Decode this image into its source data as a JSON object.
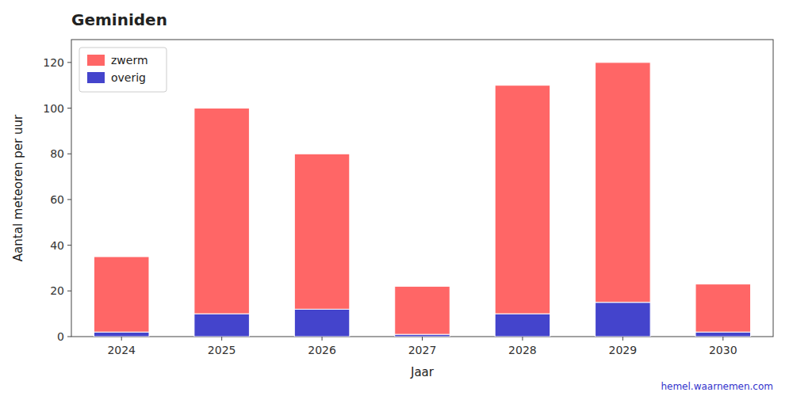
{
  "chart_data": {
    "type": "bar",
    "stacked": true,
    "title": "Geminiden",
    "x_label": "Jaar",
    "y_label": "Aantal meteoren per uur",
    "annotations": [
      "hemel.waarnemen.com"
    ],
    "categories": [
      "2024",
      "2025",
      "2026",
      "2027",
      "2028",
      "2029",
      "2030"
    ],
    "series": [
      {
        "name": "overig",
        "color": "#4444CC",
        "values": [
          2,
          10,
          12,
          1,
          10,
          15,
          2
        ]
      },
      {
        "name": "zwerm",
        "color": "#FF6666",
        "values": [
          33,
          90,
          68,
          21,
          100,
          105,
          21
        ]
      }
    ],
    "ylim": [
      0,
      130
    ],
    "yticks": [
      0,
      20,
      40,
      60,
      80,
      100,
      120
    ],
    "grid": false,
    "legend": "upper left"
  }
}
